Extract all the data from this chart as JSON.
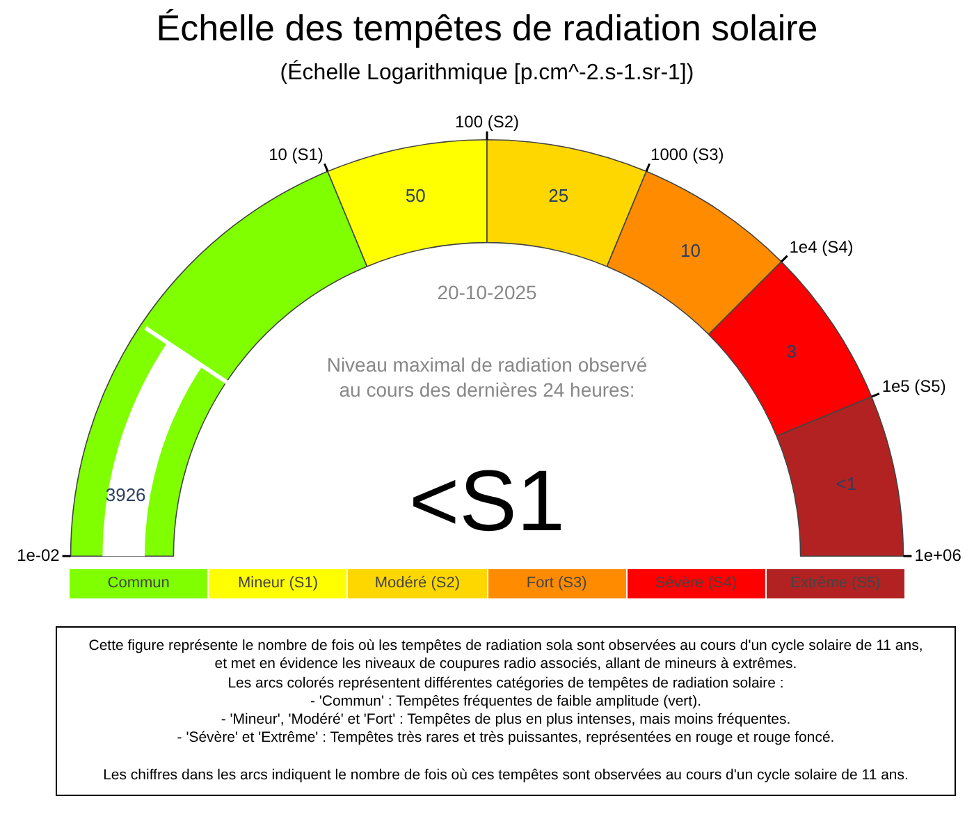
{
  "chart_data": {
    "type": "donut",
    "title": "Échelle des tempêtes de radiation solaire",
    "subtitle": "(Échelle Logarithmique [p.cm^-2.s-1.sr-1])",
    "categories": [
      "Commun",
      "Mineur (S1)",
      "Modéré (S2)",
      "Fort (S3)",
      "Sévère (S4)",
      "Extrême (S5)"
    ],
    "values": [
      37.5,
      12.5,
      12.5,
      12.5,
      12.5,
      12.5
    ],
    "colors": [
      "#7fff00",
      "#ffff00",
      "#ffd700",
      "#ff8c00",
      "#ff0000",
      "#b22222"
    ],
    "needle": "Commun",
    "legend": "bottom",
    "annotations": [
      "1e-02",
      "10 (S1)",
      "100 (S2)",
      "1000 (S3)",
      "1e4 (S4)",
      "1e5 (S5)",
      "1e+06",
      "20-10-2025",
      "Niveau maximal de radiation observé\nau cours des dernières 24 heures:",
      "<S1",
      "Cette figure représente le nombre de fois où les tempêtes de radiation sola sont observées au cours d'un cycle solaire de 11 ans,\net met en évidence les niveaux de coupures radio associés, allant de mineurs à extrêmes.\nLes arcs colorés représentent différentes catégories de tempêtes de radiation solaire :\n- 'Commun' : Tempêtes fréquentes de faible amplitude (vert).\n- 'Mineur', 'Modéré' et 'Fort' : Tempêtes de plus en plus intenses, mais moins fréquentes.\n- 'Sévère' et 'Extrême' : Tempêtes très rares et très puissantes, représentées en rouge et rouge foncé.\n\nLes chiffres dans les arcs indiquent le nombre de fois où ces tempêtes sont observées au cours d'un cycle solaire de 11 ans.",
      {
        "text": "3926",
        "x": "Commun"
      },
      {
        "text": "50",
        "x": "Mineur (S1)"
      },
      {
        "text": "25",
        "x": "Modéré (S2)"
      },
      {
        "text": "10",
        "x": "Fort (S3)"
      },
      {
        "text": "3",
        "x": "Sévère (S4)"
      },
      {
        "text": "<1",
        "x": "Extrême (S5)"
      }
    ]
  }
}
